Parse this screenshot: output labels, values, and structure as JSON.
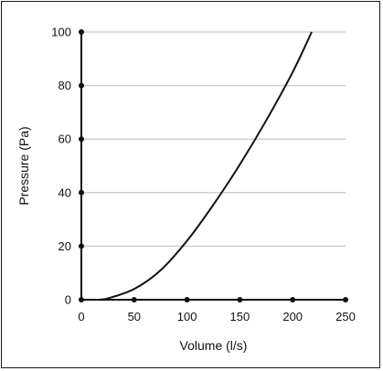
{
  "chart_data": {
    "type": "line",
    "title": "",
    "xlabel": "Volume (l/s)",
    "ylabel": "Pressure (Pa)",
    "xlim": [
      0,
      250
    ],
    "ylim": [
      0,
      100
    ],
    "x_ticks": [
      0,
      50,
      100,
      150,
      200,
      250
    ],
    "y_ticks": [
      0,
      20,
      40,
      60,
      80,
      100
    ],
    "grid": "horizontal",
    "series": [
      {
        "x": [
          15,
          25,
          50,
          75,
          100,
          125,
          150,
          175,
          200,
          218
        ],
        "y": [
          0,
          0.5,
          4,
          11,
          22,
          35.5,
          50.5,
          67,
          85,
          100
        ]
      }
    ]
  }
}
